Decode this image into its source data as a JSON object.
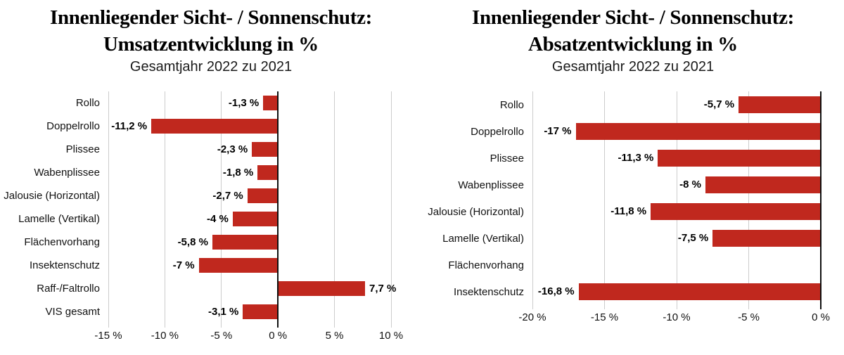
{
  "page": {
    "background": "#ffffff",
    "bar_color": "#c0281e",
    "grid_color": "#cccccc",
    "zero_line_color": "#111111"
  },
  "chart_data": [
    {
      "type": "bar",
      "orientation": "horizontal",
      "title_line1": "Innenliegender Sicht- / Sonnenschutz:",
      "title_line2": "Umsatzentwicklung in %",
      "subtitle": "Gesamtjahr 2022 zu 2021",
      "categories": [
        "Rollo",
        "Doppelrollo",
        "Plissee",
        "Wabenplissee",
        "Jalousie (Horizontal)",
        "Lamelle (Vertikal)",
        "Flächenvorhang",
        "Insektenschutz",
        "Raff-/Faltrollo",
        "VIS gesamt"
      ],
      "values": [
        -1.3,
        -11.2,
        -2.3,
        -1.8,
        -2.7,
        -4,
        -5.8,
        -7,
        7.7,
        -3.1
      ],
      "value_labels": [
        "-1,3 %",
        "-11,2 %",
        "-2,3 %",
        "-1,8 %",
        "-2,7 %",
        "-4 %",
        "-5,8 %",
        "-7 %",
        "7,7 %",
        "-3,1 %"
      ],
      "xlim": [
        -15,
        10
      ],
      "xticks": [
        -15,
        -10,
        -5,
        0,
        5,
        10
      ],
      "xtick_labels": [
        "-15 %",
        "-10 %",
        "-5 %",
        "0 %",
        "5 %",
        "10 %"
      ],
      "grid": true,
      "legend": false,
      "bar_color": "#c0281e"
    },
    {
      "type": "bar",
      "orientation": "horizontal",
      "title_line1": "Innenliegender Sicht- / Sonnenschutz:",
      "title_line2": "Absatzentwicklung in %",
      "subtitle": "Gesamtjahr 2022 zu 2021",
      "categories": [
        "Rollo",
        "Doppelrollo",
        "Plissee",
        "Wabenplissee",
        "Jalousie (Horizontal)",
        "Lamelle (Vertikal)",
        "Flächenvorhang",
        "Insektenschutz"
      ],
      "values": [
        -5.7,
        -17,
        -11.3,
        -8,
        -11.8,
        -7.5,
        null,
        -16.8
      ],
      "value_labels": [
        "-5,7 %",
        "-17 %",
        "-11,3 %",
        "-8 %",
        "-11,8 %",
        "-7,5 %",
        "",
        "-16,8 %"
      ],
      "xlim": [
        -20,
        0
      ],
      "xticks": [
        -20,
        -15,
        -10,
        -5,
        0
      ],
      "xtick_labels": [
        "-20 %",
        "-15 %",
        "-10 %",
        "-5 %",
        "0 %"
      ],
      "grid": true,
      "legend": false,
      "bar_color": "#c0281e"
    }
  ]
}
